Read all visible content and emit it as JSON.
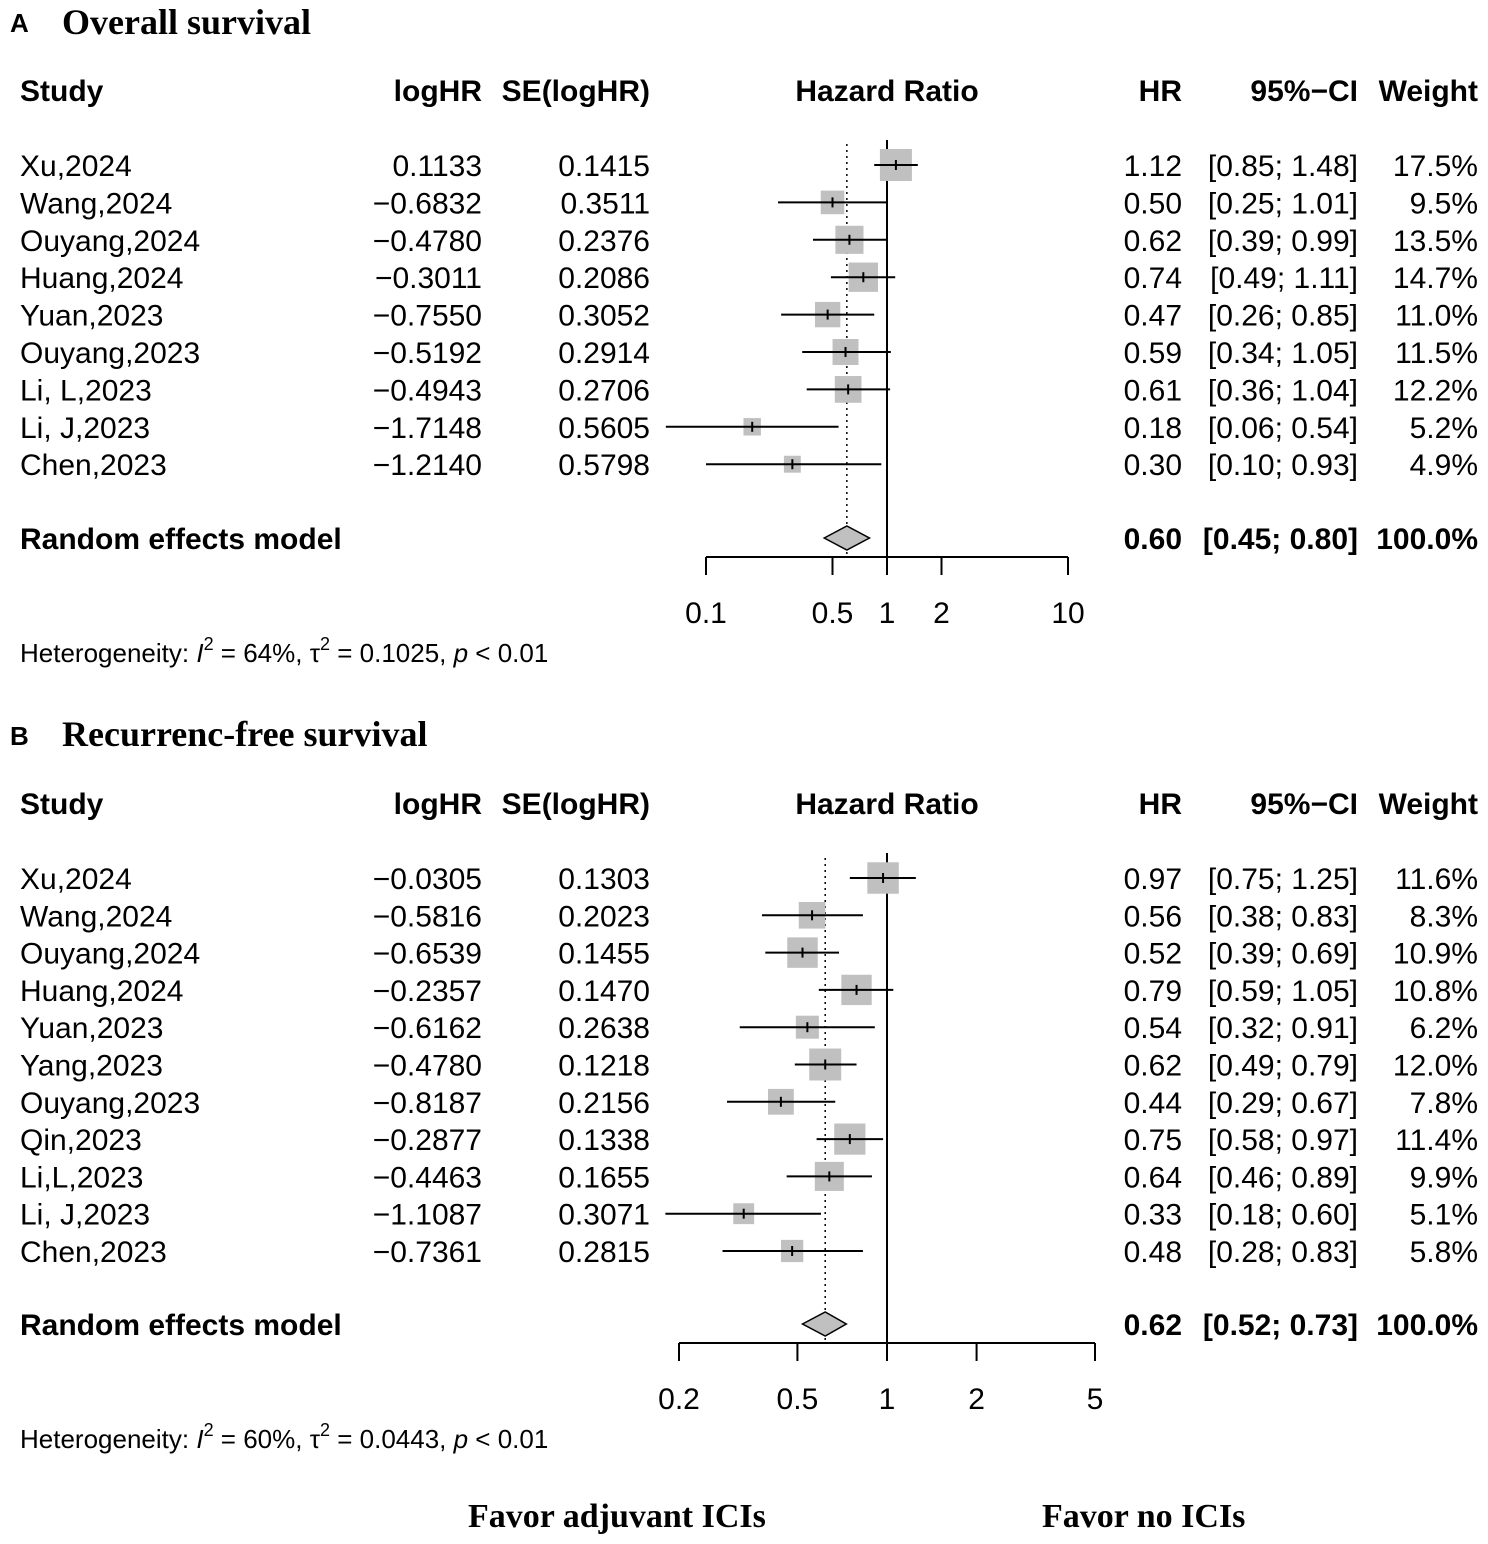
{
  "colors": {
    "box": "#c0c0c0",
    "diamond": "#c0c0c0",
    "line": "#000000"
  },
  "chart_data": [
    {
      "type": "forest",
      "panel_label": "A",
      "title": "Overall survival",
      "columns": {
        "study": "Study",
        "loghr": "logHR",
        "se": "SE(logHR)",
        "plot": "Hazard Ratio",
        "hr": "HR",
        "ci": "95%−CI",
        "weight": "Weight"
      },
      "studies": [
        {
          "study": "Xu,2024",
          "loghr": "0.1133",
          "se": "0.1415",
          "hr": "1.12",
          "ci": "[0.85; 1.48]",
          "weight": "17.5%",
          "est": 1.12,
          "lower": 0.85,
          "upper": 1.48,
          "w": 17.5
        },
        {
          "study": "Wang,2024",
          "loghr": "−0.6832",
          "se": "0.3511",
          "hr": "0.50",
          "ci": "[0.25; 1.01]",
          "weight": "9.5%",
          "est": 0.5,
          "lower": 0.25,
          "upper": 1.01,
          "w": 9.5
        },
        {
          "study": "Ouyang,2024",
          "loghr": "−0.4780",
          "se": "0.2376",
          "hr": "0.62",
          "ci": "[0.39; 0.99]",
          "weight": "13.5%",
          "est": 0.62,
          "lower": 0.39,
          "upper": 0.99,
          "w": 13.5
        },
        {
          "study": "Huang,2024",
          "loghr": "−0.3011",
          "se": "0.2086",
          "hr": "0.74",
          "ci": "[0.49; 1.11]",
          "weight": "14.7%",
          "est": 0.74,
          "lower": 0.49,
          "upper": 1.11,
          "w": 14.7
        },
        {
          "study": "Yuan,2023",
          "loghr": "−0.7550",
          "se": "0.3052",
          "hr": "0.47",
          "ci": "[0.26; 0.85]",
          "weight": "11.0%",
          "est": 0.47,
          "lower": 0.26,
          "upper": 0.85,
          "w": 11.0
        },
        {
          "study": "Ouyang,2023",
          "loghr": "−0.5192",
          "se": "0.2914",
          "hr": "0.59",
          "ci": "[0.34; 1.05]",
          "weight": "11.5%",
          "est": 0.59,
          "lower": 0.34,
          "upper": 1.05,
          "w": 11.5
        },
        {
          "study": "Li, L,2023",
          "loghr": "−0.4943",
          "se": "0.2706",
          "hr": "0.61",
          "ci": "[0.36; 1.04]",
          "weight": "12.2%",
          "est": 0.61,
          "lower": 0.36,
          "upper": 1.04,
          "w": 12.2
        },
        {
          "study": "Li, J,2023",
          "loghr": "−1.7148",
          "se": "0.5605",
          "hr": "0.18",
          "ci": "[0.06; 0.54]",
          "weight": "5.2%",
          "est": 0.18,
          "lower": 0.06,
          "upper": 0.54,
          "w": 5.2
        },
        {
          "study": "Chen,2023",
          "loghr": "−1.2140",
          "se": "0.5798",
          "hr": "0.30",
          "ci": "[0.10; 0.93]",
          "weight": "4.9%",
          "est": 0.3,
          "lower": 0.1,
          "upper": 0.93,
          "w": 4.9
        }
      ],
      "pooled": {
        "label": "Random effects model",
        "hr": "0.60",
        "ci": "[0.45; 0.80]",
        "weight": "100.0%",
        "est": 0.6,
        "lower": 0.45,
        "upper": 0.8
      },
      "axis": {
        "scale": "log",
        "min": 0.1,
        "max": 10,
        "ticks": [
          0.1,
          0.5,
          1,
          2,
          10
        ],
        "tick_labels": [
          "0.1",
          "0.5",
          "1",
          "2",
          "10"
        ]
      },
      "heterogeneity": {
        "prefix": "Heterogeneity: ",
        "i2_symbol": "I",
        "sup": "2",
        "i2_value": " = 64%, ",
        "tau_symbol": "τ",
        "tau_value": " = 0.1025, ",
        "p_symbol": "p",
        "p_value": " < 0.01"
      }
    },
    {
      "type": "forest",
      "panel_label": "B",
      "title": "Recurrenc-free survival",
      "columns": {
        "study": "Study",
        "loghr": "logHR",
        "se": "SE(logHR)",
        "plot": "Hazard Ratio",
        "hr": "HR",
        "ci": "95%−CI",
        "weight": "Weight"
      },
      "studies": [
        {
          "study": "Xu,2024",
          "loghr": "−0.0305",
          "se": "0.1303",
          "hr": "0.97",
          "ci": "[0.75; 1.25]",
          "weight": "11.6%",
          "est": 0.97,
          "lower": 0.75,
          "upper": 1.25,
          "w": 11.6
        },
        {
          "study": "Wang,2024",
          "loghr": "−0.5816",
          "se": "0.2023",
          "hr": "0.56",
          "ci": "[0.38; 0.83]",
          "weight": "8.3%",
          "est": 0.56,
          "lower": 0.38,
          "upper": 0.83,
          "w": 8.3
        },
        {
          "study": "Ouyang,2024",
          "loghr": "−0.6539",
          "se": "0.1455",
          "hr": "0.52",
          "ci": "[0.39; 0.69]",
          "weight": "10.9%",
          "est": 0.52,
          "lower": 0.39,
          "upper": 0.69,
          "w": 10.9
        },
        {
          "study": "Huang,2024",
          "loghr": "−0.2357",
          "se": "0.1470",
          "hr": "0.79",
          "ci": "[0.59; 1.05]",
          "weight": "10.8%",
          "est": 0.79,
          "lower": 0.59,
          "upper": 1.05,
          "w": 10.8
        },
        {
          "study": "Yuan,2023",
          "loghr": "−0.6162",
          "se": "0.2638",
          "hr": "0.54",
          "ci": "[0.32; 0.91]",
          "weight": "6.2%",
          "est": 0.54,
          "lower": 0.32,
          "upper": 0.91,
          "w": 6.2
        },
        {
          "study": "Yang,2023",
          "loghr": "−0.4780",
          "se": "0.1218",
          "hr": "0.62",
          "ci": "[0.49; 0.79]",
          "weight": "12.0%",
          "est": 0.62,
          "lower": 0.49,
          "upper": 0.79,
          "w": 12.0
        },
        {
          "study": "Ouyang,2023",
          "loghr": "−0.8187",
          "se": "0.2156",
          "hr": "0.44",
          "ci": "[0.29; 0.67]",
          "weight": "7.8%",
          "est": 0.44,
          "lower": 0.29,
          "upper": 0.67,
          "w": 7.8
        },
        {
          "study": "Qin,2023",
          "loghr": "−0.2877",
          "se": "0.1338",
          "hr": "0.75",
          "ci": "[0.58; 0.97]",
          "weight": "11.4%",
          "est": 0.75,
          "lower": 0.58,
          "upper": 0.97,
          "w": 11.4
        },
        {
          "study": "Li,L,2023",
          "loghr": "−0.4463",
          "se": "0.1655",
          "hr": "0.64",
          "ci": "[0.46; 0.89]",
          "weight": "9.9%",
          "est": 0.64,
          "lower": 0.46,
          "upper": 0.89,
          "w": 9.9
        },
        {
          "study": "Li, J,2023",
          "loghr": "−1.1087",
          "se": "0.3071",
          "hr": "0.33",
          "ci": "[0.18; 0.60]",
          "weight": "5.1%",
          "est": 0.33,
          "lower": 0.18,
          "upper": 0.6,
          "w": 5.1
        },
        {
          "study": "Chen,2023",
          "loghr": "−0.7361",
          "se": "0.2815",
          "hr": "0.48",
          "ci": "[0.28; 0.83]",
          "weight": "5.8%",
          "est": 0.48,
          "lower": 0.28,
          "upper": 0.83,
          "w": 5.8
        }
      ],
      "pooled": {
        "label": "Random effects model",
        "hr": "0.62",
        "ci": "[0.52; 0.73]",
        "weight": "100.0%",
        "est": 0.62,
        "lower": 0.52,
        "upper": 0.73
      },
      "axis": {
        "scale": "log",
        "min": 0.2,
        "max": 5,
        "ticks": [
          0.2,
          0.5,
          1,
          2,
          5
        ],
        "tick_labels": [
          "0.2",
          "0.5",
          "1",
          "2",
          "5"
        ]
      },
      "heterogeneity": {
        "prefix": "Heterogeneity: ",
        "i2_symbol": "I",
        "sup": "2",
        "i2_value": " = 60%, ",
        "tau_symbol": "τ",
        "tau_value": " = 0.0443, ",
        "p_symbol": "p",
        "p_value": " < 0.01"
      }
    }
  ],
  "footer": {
    "left": "Favor adjuvant ICIs",
    "right": "Favor no ICIs"
  }
}
